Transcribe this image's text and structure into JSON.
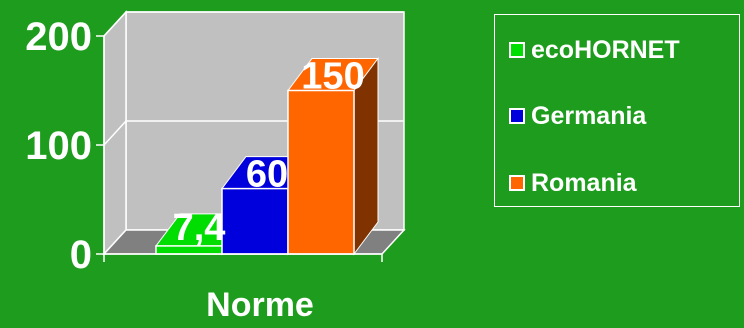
{
  "chart_data": {
    "type": "bar",
    "categories": [
      "Norme"
    ],
    "series": [
      {
        "name": "ecoHORNET",
        "values": [
          7.4
        ],
        "label": "7,4",
        "color": "#00dd00"
      },
      {
        "name": "Germania",
        "values": [
          60
        ],
        "label": "60",
        "color": "#0000dd"
      },
      {
        "name": "Romania",
        "values": [
          150
        ],
        "label": "150",
        "color": "#ff6600"
      }
    ],
    "xlabel": "Norme",
    "ylabel": "",
    "ylim": [
      0,
      200
    ],
    "yticks": [
      0,
      100,
      200
    ],
    "ytick_labels": [
      "0",
      "100",
      "200"
    ],
    "grid": true,
    "three_d": true,
    "legend_position": "right",
    "colors": {
      "background": "#1d9c1d",
      "plot_wall": "#c0c0c0",
      "floor": "#808080",
      "text": "#ffffff"
    }
  }
}
